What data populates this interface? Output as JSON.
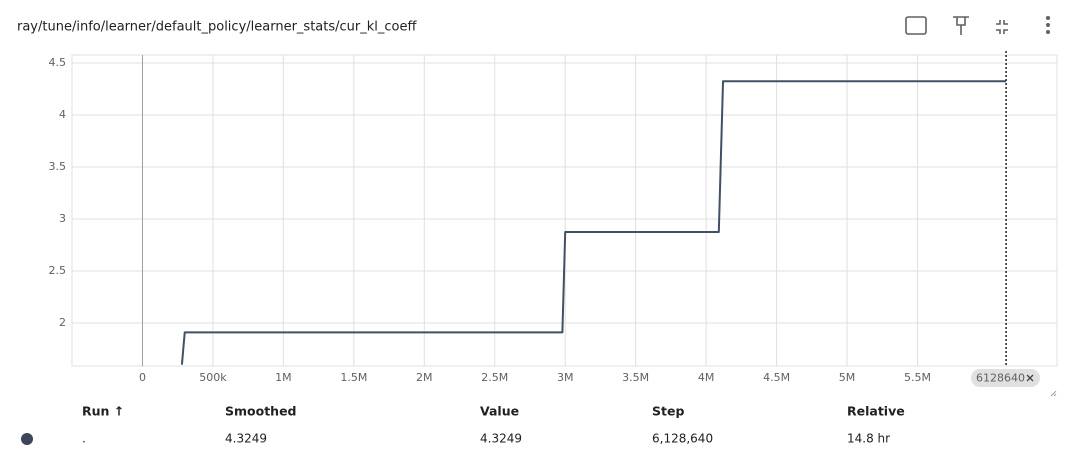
{
  "chart_data": {
    "type": "line",
    "title": "ray/tune/info/learner/default_policy/learner_stats/cur_kl_coeff",
    "series": [
      {
        "name": ".",
        "color": "#425066",
        "x": [
          280000,
          300000,
          2980000,
          3000000,
          4090000,
          4120000,
          6128640
        ],
        "values": [
          1.6,
          1.91,
          1.91,
          2.875,
          2.875,
          4.3249,
          4.3249
        ]
      }
    ],
    "xlim": [
      -500000,
      6490000
    ],
    "ylim": [
      1.587,
      4.577
    ],
    "xticks": [
      {
        "value": 0,
        "label": "0"
      },
      {
        "value": 500000,
        "label": "500k"
      },
      {
        "value": 1000000,
        "label": "1M"
      },
      {
        "value": 1500000,
        "label": "1.5M"
      },
      {
        "value": 2000000,
        "label": "2M"
      },
      {
        "value": 2500000,
        "label": "2.5M"
      },
      {
        "value": 3000000,
        "label": "3M"
      },
      {
        "value": 3500000,
        "label": "3.5M"
      },
      {
        "value": 4000000,
        "label": "4M"
      },
      {
        "value": 4500000,
        "label": "4.5M"
      },
      {
        "value": 5000000,
        "label": "5M"
      },
      {
        "value": 5500000,
        "label": "5.5M"
      }
    ],
    "yticks": [
      2,
      2.5,
      3,
      3.5,
      4,
      4.5
    ],
    "grid": true,
    "cursor_step": 6128640
  },
  "table": {
    "headers": [
      "Run ↑",
      "Smoothed",
      "Value",
      "Step",
      "Relative"
    ],
    "rows": [
      [
        ".",
        "4.3249",
        "4.3249",
        "6,128,640",
        "14.8 hr"
      ]
    ]
  }
}
